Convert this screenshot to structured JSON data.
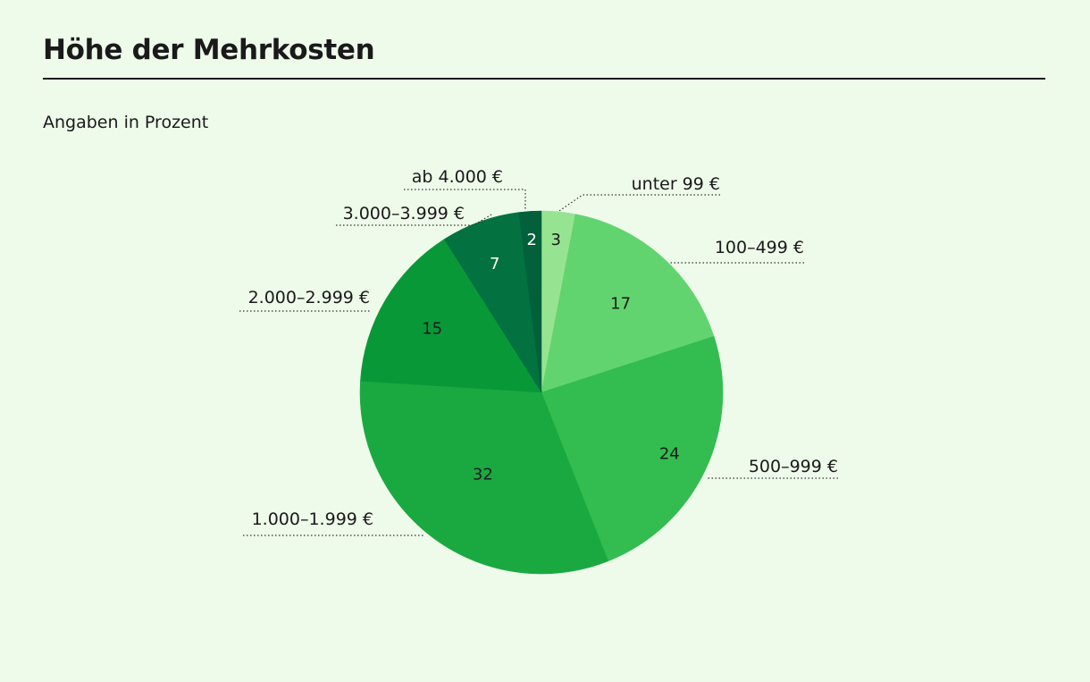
{
  "chart_data": {
    "type": "pie",
    "title": "Höhe der Mehrkosten",
    "subtitle": "Angaben in Prozent",
    "slices": [
      {
        "label": "unter 99 €",
        "value": 3,
        "color": "#96e491",
        "value_color": "#1a1a1a"
      },
      {
        "label": "100–499 €",
        "value": 17,
        "color": "#62d46f",
        "value_color": "#1a1a1a"
      },
      {
        "label": "500–999 €",
        "value": 24,
        "color": "#33bc50",
        "value_color": "#1a1a1a"
      },
      {
        "label": "1.000–1.999 €",
        "value": 32,
        "color": "#1aa941",
        "value_color": "#1a1a1a"
      },
      {
        "label": "2.000–2.999 €",
        "value": 15,
        "color": "#089838",
        "value_color": "#1a1a1a"
      },
      {
        "label": "3.000–3.999 €",
        "value": 7,
        "color": "#037240",
        "value_color": "#ffffff"
      },
      {
        "label": "ab 4.000 €",
        "value": 2,
        "color": "#02603a",
        "value_color": "#ffffff"
      }
    ]
  }
}
